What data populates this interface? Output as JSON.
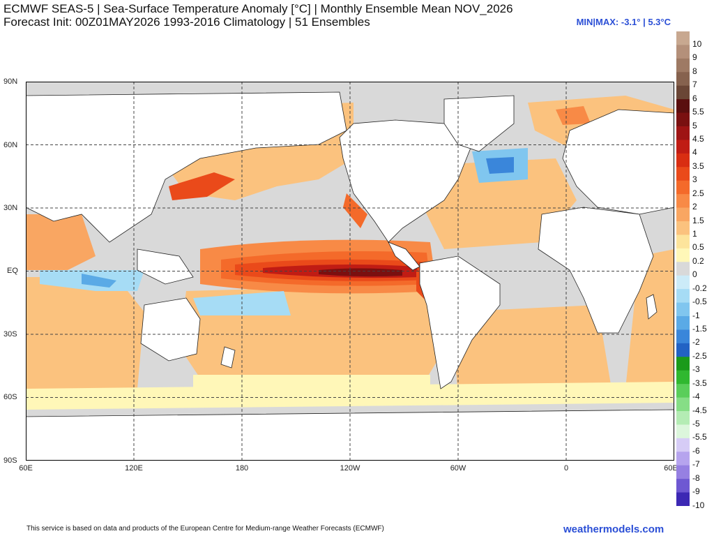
{
  "header": {
    "title_line1": "ECMWF SEAS-5 | Sea-Surface Temperature Anomaly [°C] | Monthly Ensemble Mean NOV_2026",
    "title_line2": "Forecast Init: 00Z01MAY2026    1993-2016 Climatology | 51 Ensembles",
    "minmax": "MIN|MAX: -3.1° | 5.3°C"
  },
  "map": {
    "lat_labels": [
      "90N",
      "60N",
      "30N",
      "EQ",
      "30S",
      "60S",
      "90S"
    ],
    "lon_labels": [
      "60E",
      "120E",
      "180",
      "120W",
      "60W",
      "0",
      "60E"
    ],
    "colors": {
      "land": "#ffffff",
      "neutral": "#d9d9d9",
      "grid": "#444444"
    }
  },
  "colorbar": {
    "levels": [
      {
        "label": "10",
        "color": "#c8a890"
      },
      {
        "label": "9",
        "color": "#b4907a"
      },
      {
        "label": "8",
        "color": "#9e7a64"
      },
      {
        "label": "7",
        "color": "#86624e"
      },
      {
        "label": "6",
        "color": "#6a4636"
      },
      {
        "label": "5.5",
        "color": "#5a0e0e"
      },
      {
        "label": "5",
        "color": "#7a1010"
      },
      {
        "label": "4.5",
        "color": "#9e1414"
      },
      {
        "label": "4",
        "color": "#c01c14"
      },
      {
        "label": "3.5",
        "color": "#d92e12"
      },
      {
        "label": "3",
        "color": "#ea4a1a"
      },
      {
        "label": "2.5",
        "color": "#f46a2a"
      },
      {
        "label": "2",
        "color": "#f88a46"
      },
      {
        "label": "1.5",
        "color": "#f9a662"
      },
      {
        "label": "1",
        "color": "#fbc27e"
      },
      {
        "label": "0.5",
        "color": "#fde49c"
      },
      {
        "label": "0.2",
        "color": "#fff7b8"
      },
      {
        "label": "0",
        "color": "#d9d9d9"
      },
      {
        "label": "-0.2",
        "color": "#ccebf8"
      },
      {
        "label": "-0.5",
        "color": "#a6dcf5"
      },
      {
        "label": "-1",
        "color": "#80c6ef"
      },
      {
        "label": "-1.5",
        "color": "#5aaae6"
      },
      {
        "label": "-2",
        "color": "#3a86da"
      },
      {
        "label": "-2.5",
        "color": "#2262c4"
      },
      {
        "label": "-3",
        "color": "#1a9a1a"
      },
      {
        "label": "-3.5",
        "color": "#30b830"
      },
      {
        "label": "-4",
        "color": "#5ace5a"
      },
      {
        "label": "-4.5",
        "color": "#86de86"
      },
      {
        "label": "-5",
        "color": "#b4ecb4"
      },
      {
        "label": "-5.5",
        "color": "#dcf6dc"
      },
      {
        "label": "-6",
        "color": "#d6ccf6"
      },
      {
        "label": "-7",
        "color": "#b6a4ee"
      },
      {
        "label": "-8",
        "color": "#9680e2"
      },
      {
        "label": "-9",
        "color": "#6e58d2"
      },
      {
        "label": "-10",
        "color": "#3c28b4"
      }
    ]
  },
  "footer": {
    "attribution": "This service is based on data and products of the European Centre for Medium-range Weather Forecasts (ECMWF)",
    "brand": "weathermodels.com"
  }
}
